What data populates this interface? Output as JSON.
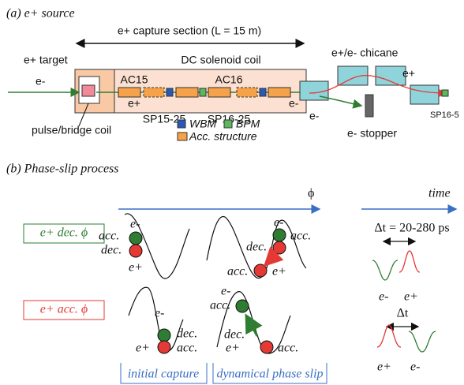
{
  "part_a": {
    "title": "(a) e+ source",
    "capture_section": "e+ capture section (L = 15 m)",
    "target": "e+ target",
    "solenoid": "DC solenoid coil",
    "beam_in": "e-",
    "ac15": "AC15",
    "ac16": "AC16",
    "positron": "e+",
    "electron": "e-",
    "sp15": "SP15-25",
    "sp16": "SP16-25",
    "coil": "pulse/bridge coil",
    "legend": [
      "WBM",
      "BPM",
      "Acc. structure"
    ],
    "chicane": "e+/e- chicane",
    "chicane_positron": "e+",
    "chicane_electron": "e-",
    "stopper": "e- stopper",
    "sp16_5": "SP16-5"
  },
  "part_b": {
    "title": "(b) Phase-slip process",
    "phase_axis": "ϕ",
    "time_axis": "time",
    "modes": [
      "e+ dec. ϕ",
      "e+ acc. ϕ"
    ],
    "panels": [
      {
        "labels": [
          "e-",
          "acc.",
          "dec.",
          "e+"
        ]
      },
      {
        "labels": [
          "e-",
          "acc.",
          "dec.",
          "acc.",
          "e+"
        ]
      },
      {
        "labels": [
          "e-",
          "dec.",
          "e+",
          "acc."
        ]
      },
      {
        "labels": [
          "acc.",
          "e-",
          "dec.",
          "e+",
          "acc."
        ]
      }
    ],
    "timing": [
      {
        "label": "Δt = 20-280 ps",
        "electron": "e-",
        "positron": "e+"
      },
      {
        "label": "Δt",
        "positron": "e+",
        "electron": "e-"
      }
    ],
    "captions": [
      "initial capture",
      "dynamical phase slip"
    ]
  }
}
